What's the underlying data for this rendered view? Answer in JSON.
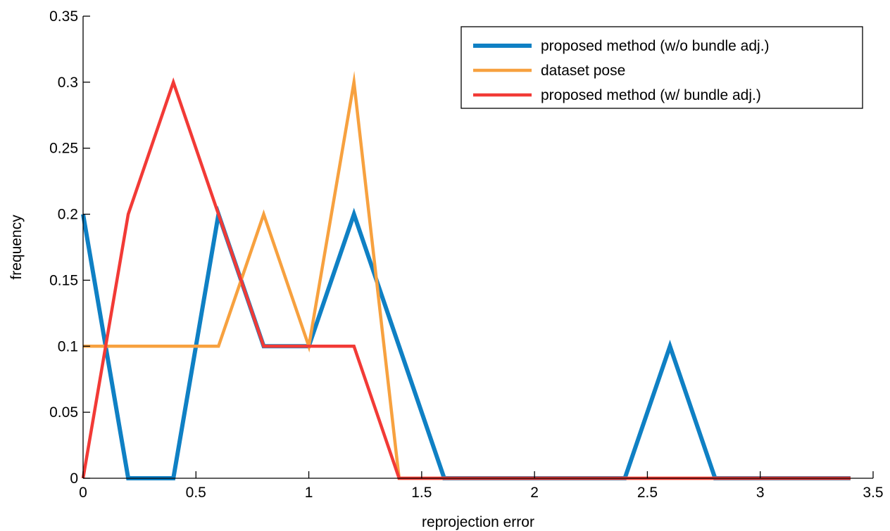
{
  "chart_data": {
    "type": "line",
    "title": "",
    "xlabel": "reprojection error",
    "ylabel": "frequency",
    "xlim": [
      0,
      3.5
    ],
    "ylim": [
      0,
      0.35
    ],
    "xticks": [
      0,
      0.5,
      1,
      1.5,
      2,
      2.5,
      3,
      3.5
    ],
    "xtick_labels": [
      "0",
      "0.5",
      "1",
      "1.5",
      "2",
      "2.5",
      "3",
      "3.5"
    ],
    "yticks": [
      0,
      0.05,
      0.1,
      0.15,
      0.2,
      0.25,
      0.3,
      0.35
    ],
    "ytick_labels": [
      "0",
      "0.05",
      "0.1",
      "0.15",
      "0.2",
      "0.25",
      "0.3",
      "0.35"
    ],
    "grid": false,
    "legend_position": "top-right",
    "x": [
      0,
      0.2,
      0.4,
      0.6,
      0.8,
      1.0,
      1.2,
      1.4,
      1.6,
      1.8,
      2.0,
      2.2,
      2.4,
      2.6,
      2.8,
      3.0,
      3.2,
      3.4
    ],
    "series": [
      {
        "name": "proposed method (w/o bundle adj.)",
        "color": "#0f80c4",
        "width": "thick",
        "values": [
          0.2,
          0,
          0,
          0.2,
          0.1,
          0.1,
          0.2,
          0.1,
          0,
          0,
          0,
          0,
          0,
          0.1,
          0,
          0,
          0,
          0
        ]
      },
      {
        "name": "dataset pose",
        "color": "#f7a13f",
        "width": "normal",
        "values": [
          0.1,
          0.1,
          0.1,
          0.1,
          0.2,
          0.1,
          0.3,
          0,
          0,
          0,
          0,
          0,
          0,
          0,
          0,
          0,
          0,
          0
        ]
      },
      {
        "name": "proposed method (w/ bundle adj.)",
        "color": "#f23a36",
        "width": "normal",
        "values": [
          0,
          0.2,
          0.3,
          0.2,
          0.1,
          0.1,
          0.1,
          0,
          0,
          0,
          0,
          0,
          0,
          0,
          0,
          0,
          0,
          0
        ]
      }
    ]
  }
}
